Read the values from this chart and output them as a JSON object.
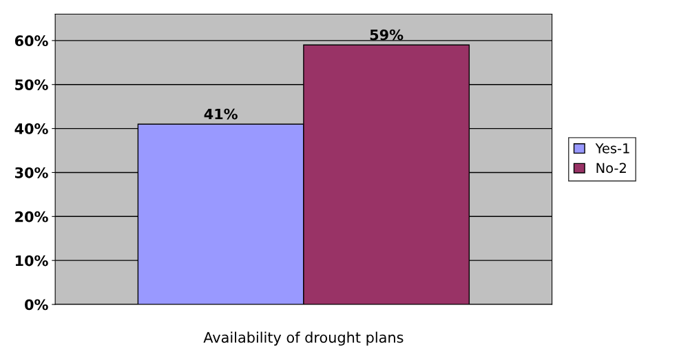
{
  "chart_data": {
    "type": "bar",
    "xlabel": "Availability of drought plans",
    "categories": [
      null
    ],
    "series": [
      {
        "name": "Yes-1",
        "color": "#9999ff",
        "values": [
          41
        ],
        "value_labels": [
          "41%"
        ]
      },
      {
        "name": "No-2",
        "color": "#993366",
        "values": [
          59
        ],
        "value_labels": [
          "59%"
        ]
      }
    ],
    "ylim": [
      0,
      66
    ],
    "yticks": [
      {
        "value": 0,
        "label": "0%"
      },
      {
        "value": 10,
        "label": "10%"
      },
      {
        "value": 20,
        "label": "20%"
      },
      {
        "value": 30,
        "label": "30%"
      },
      {
        "value": 40,
        "label": "40%"
      },
      {
        "value": 50,
        "label": "50%"
      },
      {
        "value": 60,
        "label": "60%"
      }
    ],
    "grid": "y",
    "legend": "right"
  }
}
